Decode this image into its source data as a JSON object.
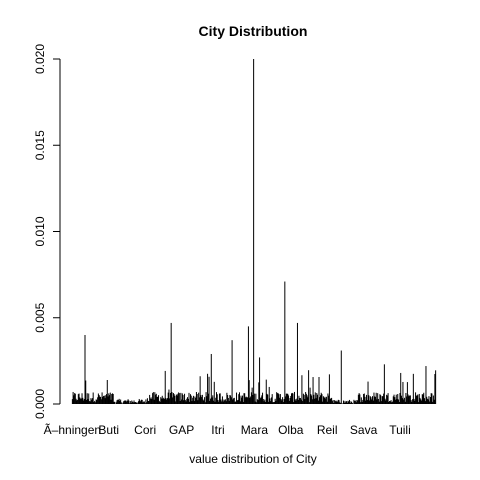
{
  "chart_data": {
    "type": "bar",
    "title": "City Distribution",
    "xlabel": "value distribution of City",
    "ylabel": "",
    "ylim": [
      0,
      0.02
    ],
    "yticks": [
      0.0,
      0.005,
      0.01,
      0.015,
      0.02
    ],
    "ytick_labels": [
      "0.000",
      "0.005",
      "0.010",
      "0.015",
      "0.020"
    ],
    "category_labels": [
      "Ã–hningen",
      "Buti",
      "Cori",
      "GAP",
      "Itri",
      "Mara",
      "Olba",
      "Reil",
      "Sava",
      "Tuili"
    ],
    "n_categories": 490,
    "category_label_index": [
      0,
      49,
      98,
      147,
      196,
      245,
      294,
      343,
      392,
      441
    ],
    "highlighted_values": [
      {
        "index": 17,
        "value": 0.004
      },
      {
        "index": 133,
        "value": 0.0047
      },
      {
        "index": 187,
        "value": 0.0029
      },
      {
        "index": 215,
        "value": 0.0037
      },
      {
        "index": 237,
        "value": 0.0045
      },
      {
        "index": 244,
        "value": 0.02
      },
      {
        "index": 252,
        "value": 0.0027
      },
      {
        "index": 286,
        "value": 0.0071
      },
      {
        "index": 303,
        "value": 0.0047
      },
      {
        "index": 362,
        "value": 0.0031
      },
      {
        "index": 398,
        "value": 0.0013
      },
      {
        "index": 420,
        "value": 0.0023
      },
      {
        "index": 442,
        "value": 0.0018
      },
      {
        "index": 476,
        "value": 0.0022
      }
    ],
    "grid": false,
    "bar_color": "#000000"
  }
}
